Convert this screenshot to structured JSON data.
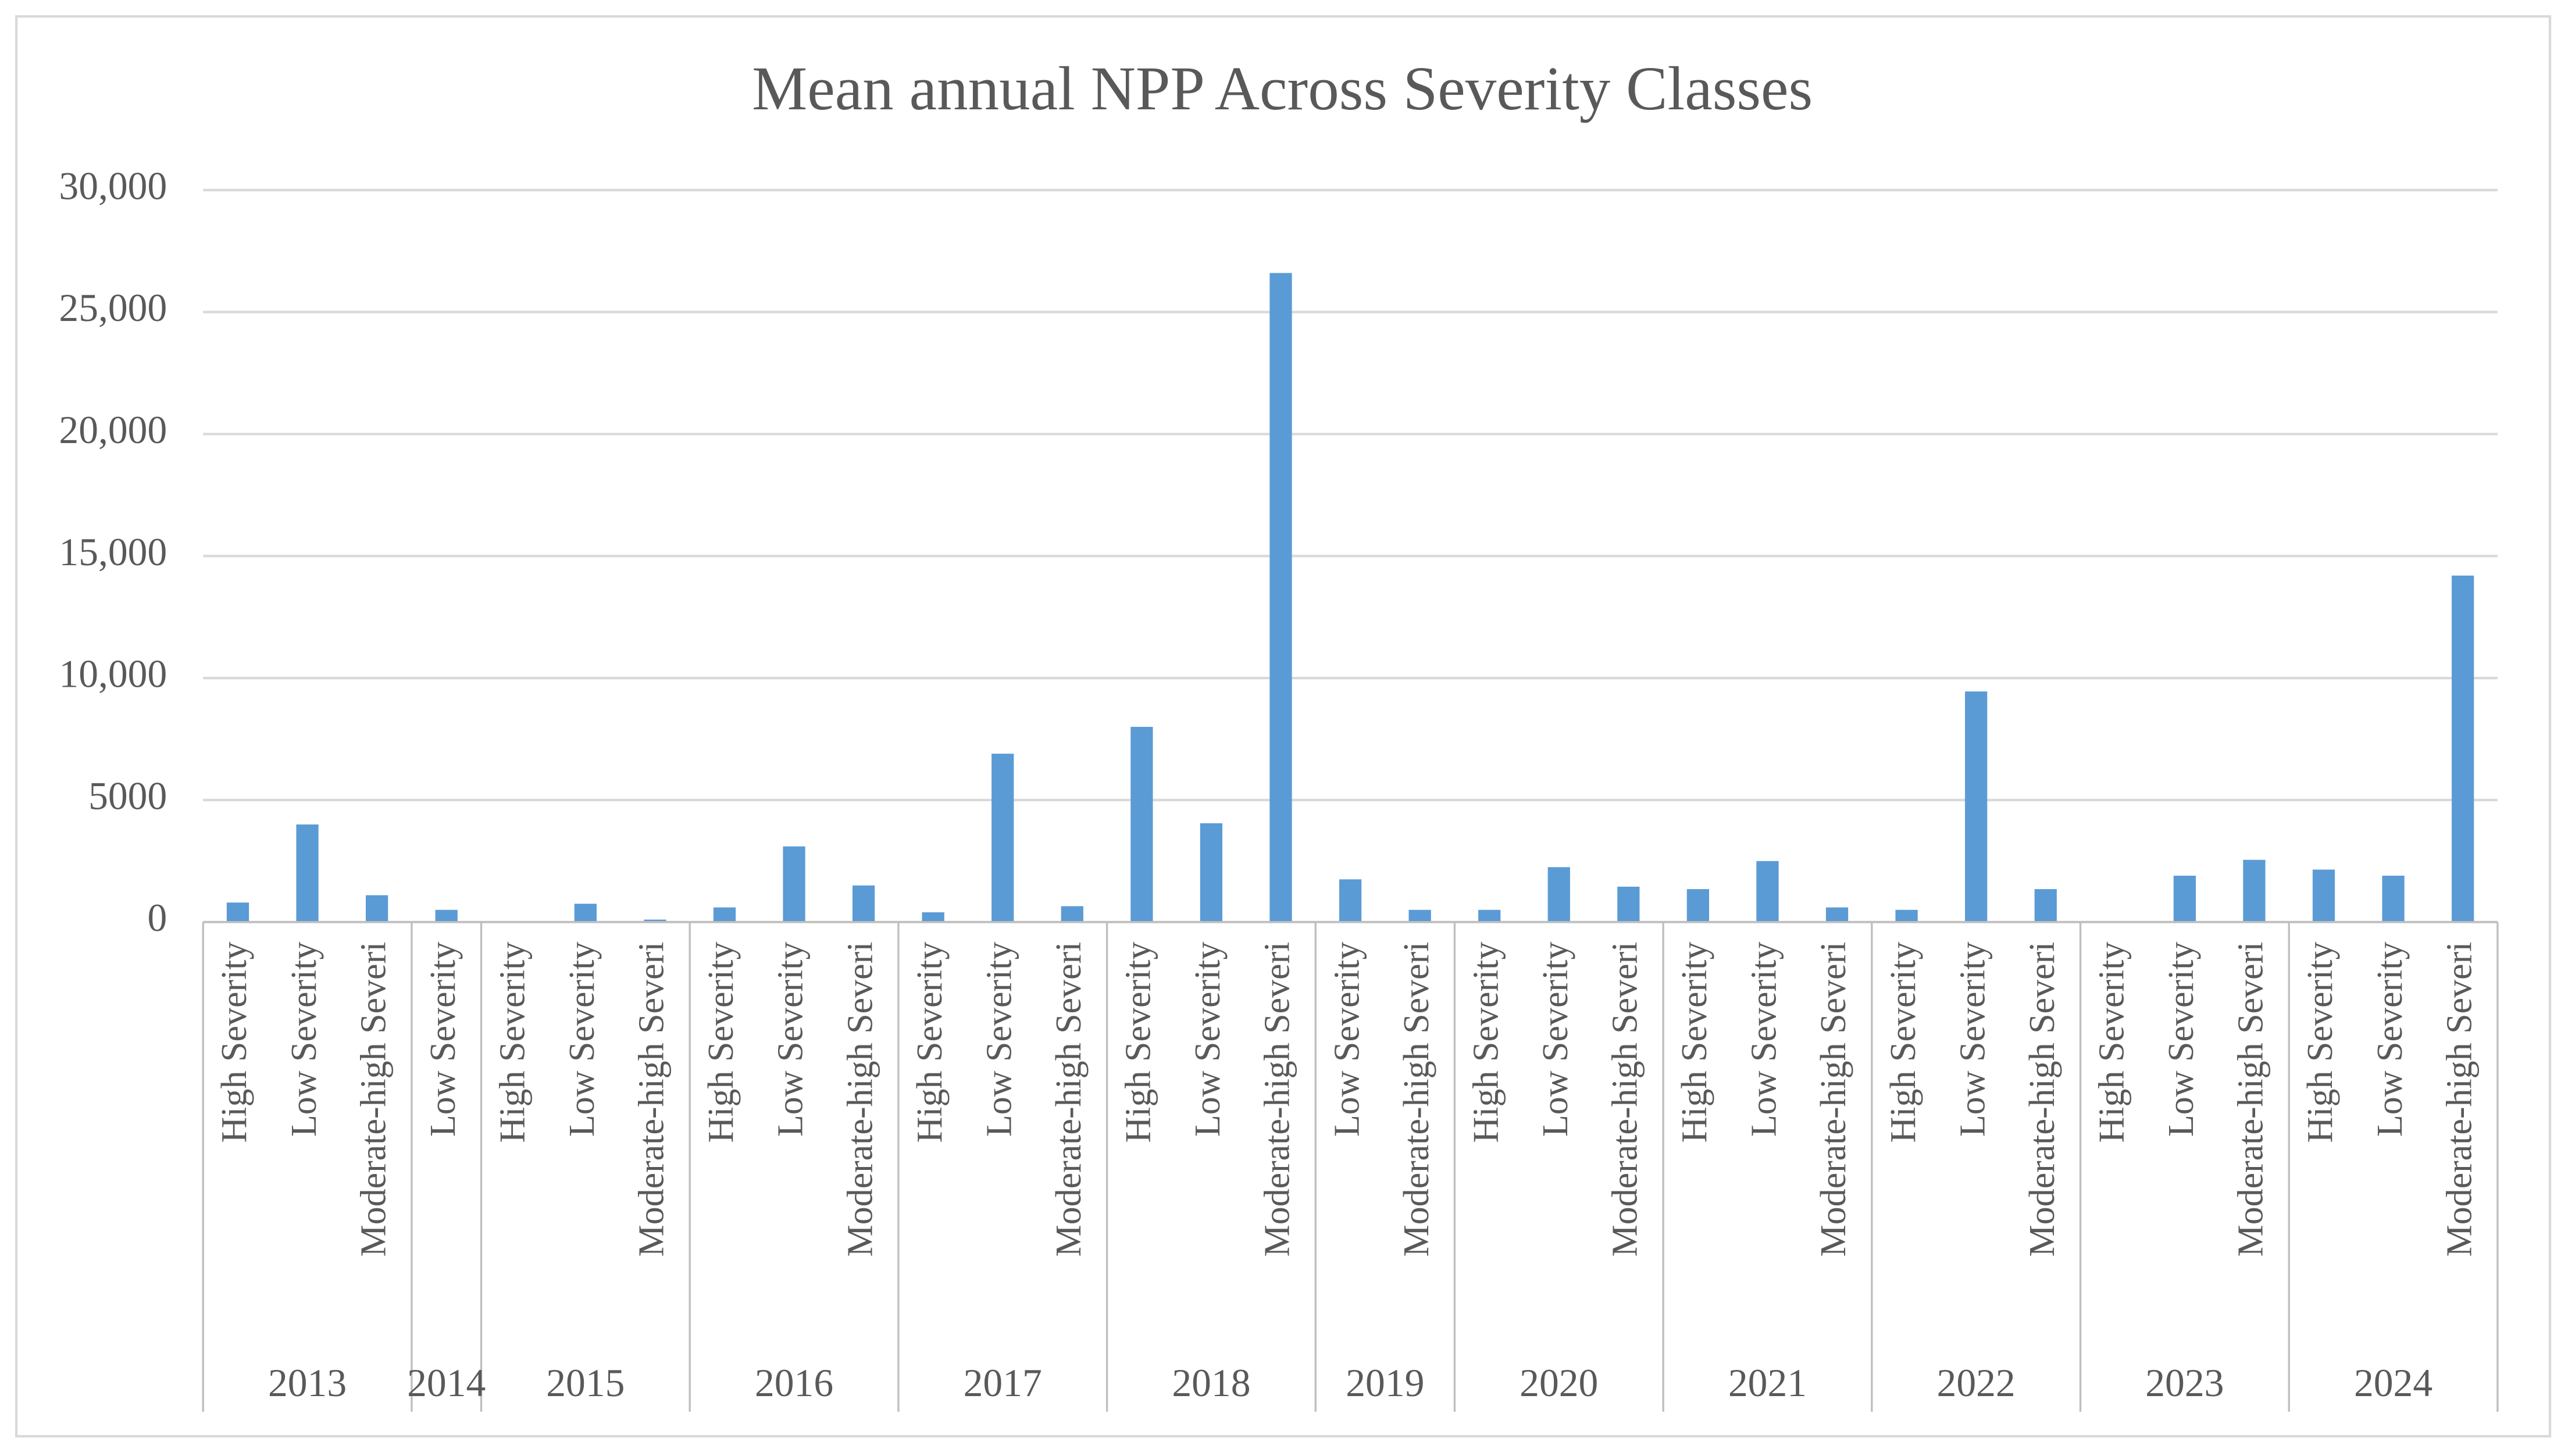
{
  "chart_data": {
    "type": "bar",
    "title": "Mean annual NPP Across Severity Classes",
    "color": "#5b9bd5",
    "grid": true,
    "ylim": [
      0,
      30000
    ],
    "yticks": [
      0,
      5000,
      {
        "value": 10000,
        "label": "10,000"
      },
      {
        "value": 15000,
        "label": "15,000"
      },
      {
        "value": 20000,
        "label": "20,000"
      },
      {
        "value": 25000,
        "label": "25,000"
      },
      {
        "value": 30000,
        "label": "30,000"
      }
    ],
    "groups": [
      {
        "label": "2013",
        "categories": [
          "High Severity",
          "Low Severity",
          "Moderate-high Severi"
        ],
        "values": [
          800,
          4000,
          1100
        ]
      },
      {
        "label": "2014",
        "categories": [
          "Low Severity"
        ],
        "values": [
          500
        ]
      },
      {
        "label": "2015",
        "categories": [
          "High Severity",
          "Low Severity",
          "Moderate-high Severi"
        ],
        "values": [
          null,
          750,
          100
        ]
      },
      {
        "label": "2016",
        "categories": [
          "High Severity",
          "Low Severity",
          "Moderate-high Severi"
        ],
        "values": [
          600,
          3100,
          1500
        ]
      },
      {
        "label": "2017",
        "categories": [
          "High Severity",
          "Low Severity",
          "Moderate-high Severi"
        ],
        "values": [
          400,
          6900,
          650
        ]
      },
      {
        "label": "2018",
        "categories": [
          "High Severity",
          "Low Severity",
          "Moderate-high Severi"
        ],
        "values": [
          8000,
          4050,
          26600
        ]
      },
      {
        "label": "2019",
        "categories": [
          "Low Severity",
          "Moderate-high Severi"
        ],
        "values": [
          1750,
          500
        ]
      },
      {
        "label": "2020",
        "categories": [
          "High Severity",
          "Low Severity",
          "Moderate-high Severi"
        ],
        "values": [
          500,
          2250,
          1450
        ]
      },
      {
        "label": "2021",
        "categories": [
          "High Severity",
          "Low Severity",
          "Moderate-high Severi"
        ],
        "values": [
          1350,
          2500,
          600
        ]
      },
      {
        "label": "2022",
        "categories": [
          "High Severity",
          "Low Severity",
          "Moderate-high Severi"
        ],
        "values": [
          500,
          9450,
          1350
        ]
      },
      {
        "label": "2023",
        "categories": [
          "High Severity",
          "Low Severity",
          "Moderate-high Severi"
        ],
        "values": [
          null,
          1900,
          2550
        ]
      },
      {
        "label": "2024",
        "categories": [
          "High Severity",
          "Low Severity",
          "Moderate-high Severi"
        ],
        "values": [
          2150,
          1900,
          14200
        ]
      }
    ]
  }
}
